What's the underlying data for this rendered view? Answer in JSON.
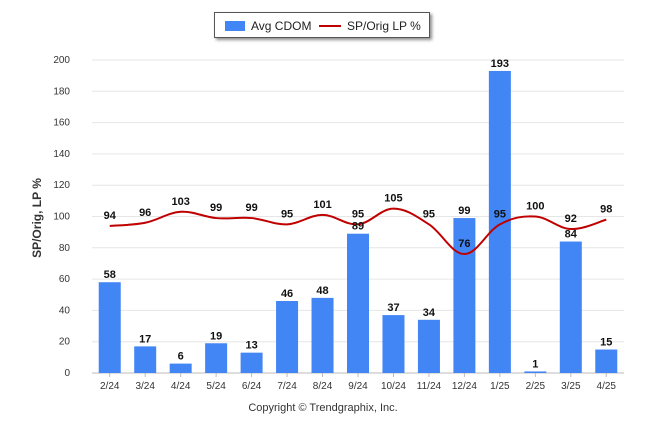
{
  "chart_data": {
    "type": "bar",
    "categories": [
      "2/24",
      "3/24",
      "4/24",
      "5/24",
      "6/24",
      "7/24",
      "8/24",
      "9/24",
      "10/24",
      "11/24",
      "12/24",
      "1/25",
      "2/25",
      "3/25",
      "4/25"
    ],
    "series": [
      {
        "name": "Avg CDOM",
        "type": "bar",
        "color": "#4285f4",
        "values": [
          58,
          17,
          6,
          19,
          13,
          46,
          48,
          89,
          37,
          34,
          99,
          193,
          1,
          84,
          15
        ]
      },
      {
        "name": "SP/Orig LP %",
        "type": "line",
        "color": "#c00000",
        "values": [
          94,
          96,
          103,
          99,
          99,
          95,
          101,
          95,
          105,
          95,
          76,
          95,
          100,
          92,
          98
        ]
      }
    ],
    "ylabel": "SP/Orig, LP %",
    "ylim": [
      0,
      200
    ],
    "yticks": [
      0,
      20,
      40,
      60,
      80,
      100,
      120,
      140,
      160,
      180,
      200
    ],
    "grid": true,
    "legend": "top-center"
  },
  "legend": {
    "bar_label": "Avg CDOM",
    "line_label": "SP/Orig LP %",
    "bar_color": "#4285f4",
    "line_color": "#c00000"
  },
  "footer": {
    "copyright": "Copyright © Trendgraphix, Inc."
  }
}
